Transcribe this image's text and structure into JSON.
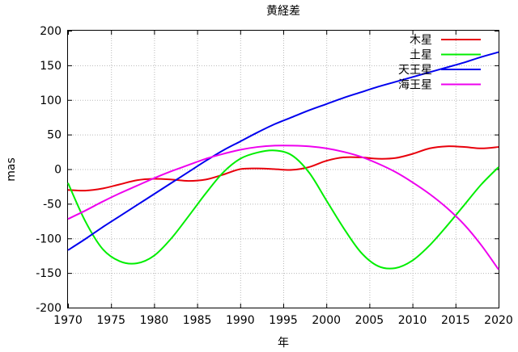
{
  "chart_data": {
    "type": "line",
    "title": "黄経差",
    "xlabel": "年",
    "ylabel": "mas",
    "xlim": [
      1970,
      2020
    ],
    "ylim": [
      -200,
      200
    ],
    "xticks": [
      1970,
      1975,
      1980,
      1985,
      1990,
      1995,
      2000,
      2005,
      2010,
      2015,
      2020
    ],
    "yticks": [
      -200,
      -150,
      -100,
      -50,
      0,
      50,
      100,
      150,
      200
    ],
    "xtick_labels": [
      "1970",
      "1975",
      "1980",
      "1985",
      "1990",
      "1995",
      "2000",
      "2005",
      "2010",
      "2015",
      "2020"
    ],
    "ytick_labels": [
      "-200",
      "-150",
      "-100",
      "-50",
      "0",
      "50",
      "100",
      "150",
      "200"
    ],
    "grid": true,
    "legend_position": "top-right",
    "series": [
      {
        "name": "木星",
        "color": "#e8000b",
        "x": [
          1970,
          1972,
          1974,
          1976,
          1978,
          1980,
          1982,
          1984,
          1986,
          1988,
          1990,
          1992,
          1994,
          1996,
          1998,
          2000,
          2002,
          2004,
          2006,
          2008,
          2010,
          2012,
          2014,
          2016,
          2018,
          2020
        ],
        "y": [
          -30,
          -31,
          -28,
          -22,
          -16,
          -14,
          -15,
          -17,
          -15,
          -8,
          0,
          1,
          0,
          -1,
          3,
          12,
          17,
          17,
          15,
          16,
          22,
          30,
          33,
          32,
          30,
          32
        ]
      },
      {
        "name": "土星",
        "color": "#00ee00",
        "x": [
          1970,
          1972,
          1974,
          1976,
          1978,
          1980,
          1982,
          1984,
          1986,
          1988,
          1990,
          1992,
          1994,
          1996,
          1998,
          2000,
          2002,
          2004,
          2006,
          2008,
          2010,
          2012,
          2014,
          2016,
          2018,
          2020
        ],
        "y": [
          -20,
          -75,
          -115,
          -133,
          -136,
          -125,
          -100,
          -68,
          -35,
          -5,
          15,
          24,
          27,
          20,
          -5,
          -45,
          -85,
          -120,
          -140,
          -143,
          -132,
          -110,
          -82,
          -52,
          -22,
          3
        ]
      },
      {
        "name": "天王星",
        "color": "#0000ee",
        "x": [
          1970,
          1972,
          1974,
          1976,
          1978,
          1980,
          1982,
          1984,
          1986,
          1988,
          1990,
          1992,
          1994,
          1996,
          1998,
          2000,
          2002,
          2004,
          2006,
          2008,
          2010,
          2012,
          2014,
          2016,
          2018,
          2020
        ],
        "y": [
          -117,
          -101,
          -84,
          -68,
          -52,
          -36,
          -20,
          -4,
          12,
          27,
          40,
          53,
          65,
          75,
          85,
          94,
          103,
          111,
          119,
          126,
          133,
          140,
          147,
          154,
          162,
          169
        ]
      },
      {
        "name": "海王星",
        "color": "#ee00ee",
        "x": [
          1970,
          1972,
          1974,
          1976,
          1978,
          1980,
          1982,
          1984,
          1986,
          1988,
          1990,
          1992,
          1994,
          1996,
          1998,
          2000,
          2002,
          2004,
          2006,
          2008,
          2010,
          2012,
          2014,
          2016,
          2018,
          2020
        ],
        "y": [
          -72,
          -60,
          -47,
          -35,
          -24,
          -13,
          -3,
          6,
          15,
          22,
          28,
          32,
          34,
          34,
          33,
          30,
          25,
          18,
          8,
          -4,
          -19,
          -36,
          -56,
          -80,
          -110,
          -145
        ]
      }
    ]
  }
}
